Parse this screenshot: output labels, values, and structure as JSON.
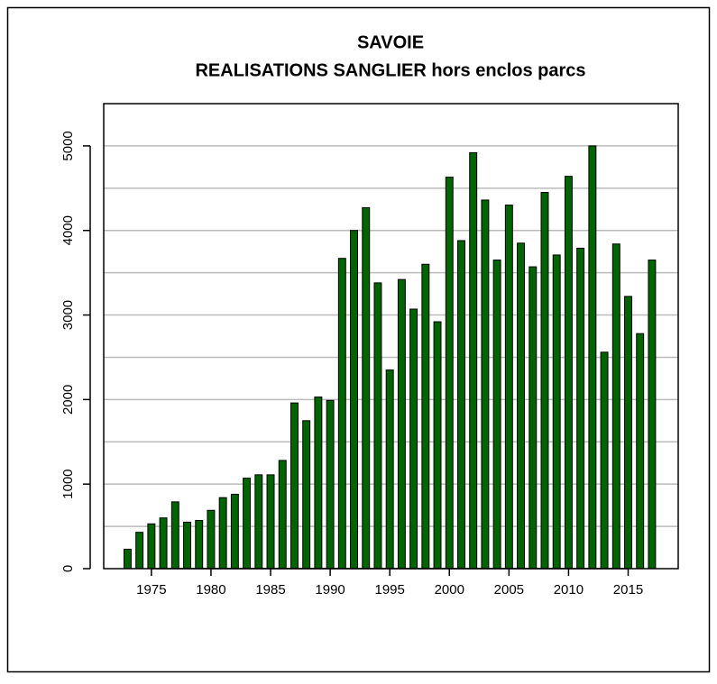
{
  "chart_data": {
    "type": "bar",
    "title": "SAVOIE",
    "subtitle": "REALISATIONS SANGLIER hors enclos parcs",
    "x": [
      1973,
      1974,
      1975,
      1976,
      1977,
      1978,
      1979,
      1980,
      1981,
      1982,
      1983,
      1984,
      1985,
      1986,
      1987,
      1988,
      1989,
      1990,
      1991,
      1992,
      1993,
      1994,
      1995,
      1996,
      1997,
      1998,
      1999,
      2000,
      2001,
      2002,
      2003,
      2004,
      2005,
      2006,
      2007,
      2008,
      2009,
      2010,
      2011,
      2012,
      2013,
      2014,
      2015,
      2016,
      2017
    ],
    "values": [
      230,
      430,
      530,
      600,
      790,
      550,
      570,
      690,
      840,
      880,
      1070,
      1110,
      1110,
      1280,
      1960,
      1750,
      2030,
      1990,
      3670,
      4000,
      4270,
      3380,
      2350,
      3420,
      3070,
      3600,
      2920,
      4630,
      3880,
      4920,
      4360,
      3650,
      4300,
      3850,
      3570,
      4450,
      3710,
      4640,
      3790,
      5000,
      2560,
      3840,
      3220,
      2780,
      3650
    ],
    "color": "#006400",
    "xlim": [
      1971,
      2019.2
    ],
    "xticks": [
      1975,
      1980,
      1985,
      1990,
      1995,
      2000,
      2005,
      2010,
      2015
    ],
    "ylim": [
      0,
      5500
    ],
    "yticks": [
      0,
      1000,
      2000,
      3000,
      4000,
      5000
    ],
    "ygrid": [
      500,
      1000,
      1500,
      2000,
      2500,
      3000,
      3500,
      4000,
      4500,
      5000
    ],
    "grid": true
  }
}
